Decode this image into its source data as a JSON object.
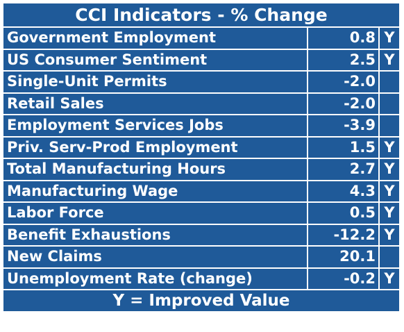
{
  "title": "CCI Indicators - % Change",
  "rows": [
    {
      "name": "Government Employment",
      "value": "0.8",
      "flag": "Y"
    },
    {
      "name": "US Consumer Sentiment",
      "value": "2.5",
      "flag": "Y"
    },
    {
      "name": "Single-Unit Permits",
      "value": "-2.0",
      "flag": ""
    },
    {
      "name": "Retail Sales",
      "value": "-2.0",
      "flag": ""
    },
    {
      "name": "Employment Services Jobs",
      "value": "-3.9",
      "flag": ""
    },
    {
      "name": "Priv. Serv-Prod Employment",
      "value": "1.5",
      "flag": "Y"
    },
    {
      "name": "Total Manufacturing Hours",
      "value": "2.7",
      "flag": "Y"
    },
    {
      "name": "Manufacturing Wage",
      "value": "4.3",
      "flag": "Y"
    },
    {
      "name": "Labor Force",
      "value": "0.5",
      "flag": "Y"
    },
    {
      "name": "Benefit Exhaustions",
      "value": "-12.2",
      "flag": "Y"
    },
    {
      "name": "New Claims",
      "value": "20.1",
      "flag": ""
    },
    {
      "name": "Unemployment Rate (change)",
      "value": "-0.2",
      "flag": "Y"
    }
  ],
  "footer": "Y = Improved Value",
  "colors": {
    "background": "#1f5a99",
    "text": "#ffffff",
    "border": "#ffffff"
  }
}
